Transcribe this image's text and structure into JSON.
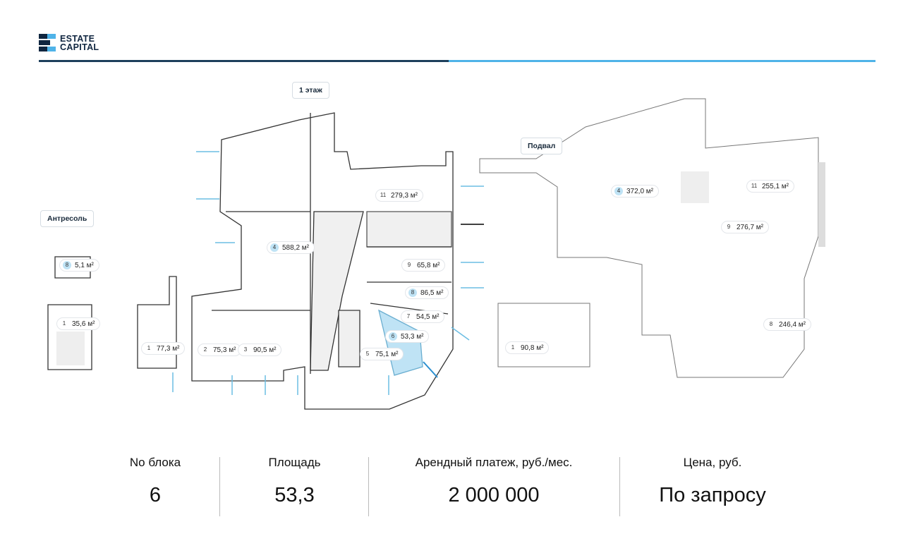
{
  "brand": {
    "line1": "ESTATE",
    "line2": "CAPITAL",
    "colors": {
      "dark": "#102640",
      "accent": "#4fb3e8"
    }
  },
  "plans": {
    "first_floor": {
      "title": "1 этаж",
      "rooms": [
        {
          "n": "11",
          "area": "279,3 м²",
          "hl": false
        },
        {
          "n": "4",
          "area": "588,2 м²",
          "hl": true
        },
        {
          "n": "9",
          "area": "65,8 м²",
          "hl": false
        },
        {
          "n": "8",
          "area": "86,5 м²",
          "hl": true
        },
        {
          "n": "7",
          "area": "54,5 м²",
          "hl": false
        },
        {
          "n": "6",
          "area": "53,3 м²",
          "hl": true
        },
        {
          "n": "5",
          "area": "75,1 м²",
          "hl": false
        },
        {
          "n": "1",
          "area": "77,3 м²",
          "hl": false
        },
        {
          "n": "2",
          "area": "75,3 м²",
          "hl": false
        },
        {
          "n": "3",
          "area": "90,5 м²",
          "hl": false
        }
      ]
    },
    "mezzanine": {
      "title": "Антресоль",
      "rooms": [
        {
          "n": "8",
          "area": "5,1 м²",
          "hl": true
        },
        {
          "n": "1",
          "area": "35,6 м²",
          "hl": false
        }
      ]
    },
    "basement": {
      "title": "Подвал",
      "rooms": [
        {
          "n": "4",
          "area": "372,0 м²",
          "hl": true
        },
        {
          "n": "11",
          "area": "255,1 м²",
          "hl": false
        },
        {
          "n": "9",
          "area": "276,7 м²",
          "hl": false
        },
        {
          "n": "8",
          "area": "246,4 м²",
          "hl": false
        },
        {
          "n": "1",
          "area": "90,8 м²",
          "hl": false
        }
      ]
    },
    "selected_color": "#bfe3f5"
  },
  "summary": [
    {
      "label": "No блока",
      "value": "6"
    },
    {
      "label": "Площадь",
      "value": "53,3"
    },
    {
      "label": "Арендный платеж, руб./мес.",
      "value": "2 000 000"
    },
    {
      "label": "Цена, руб.",
      "value": "По запросу"
    }
  ]
}
